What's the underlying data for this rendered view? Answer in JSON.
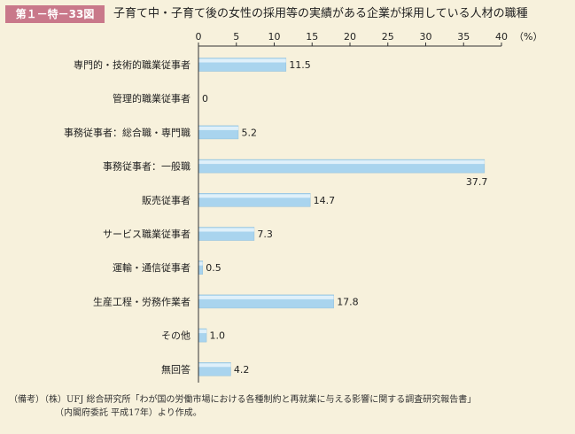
{
  "header": {
    "figure_label": "第１－特－33図",
    "title": "子育て中・子育て後の女性の採用等の実績がある企業が採用している人材の職種"
  },
  "chart_data": {
    "type": "bar",
    "orientation": "horizontal",
    "title": "子育て中・子育て後の女性の採用等の実績がある企業が採用している人材の職種",
    "unit": "（%）",
    "xlim": [
      0,
      40
    ],
    "ticks": [
      0,
      5,
      10,
      15,
      20,
      25,
      30,
      35,
      40
    ],
    "categories": [
      "専門的・技術的職業従事者",
      "管理的職業従事者",
      "事務従事者：総合職・専門職",
      "事務従事者：一般職",
      "販売従事者",
      "サービス職業従事者",
      "運輸・通信従事者",
      "生産工程・労務作業者",
      "その他",
      "無回答"
    ],
    "values": [
      11.5,
      0,
      5.2,
      37.7,
      14.7,
      7.3,
      0.5,
      17.8,
      1.0,
      4.2
    ],
    "value_labels": [
      "11.5",
      "0",
      "5.2",
      "37.7",
      "14.7",
      "7.3",
      "0.5",
      "17.8",
      "1.0",
      "4.2"
    ],
    "grid": false,
    "legend": "none",
    "colors": {
      "bar": "#a9d4ee",
      "bar_highlight": "#e4f3fb",
      "axis": "#333333"
    }
  },
  "note": {
    "line1": "（備考）（株）UFJ 総合研究所「わが国の労働市場における各種制約と再就業に与える影響に関する調査研究報告書」",
    "line2": "（内閣府委託 平成17年）より作成。"
  }
}
